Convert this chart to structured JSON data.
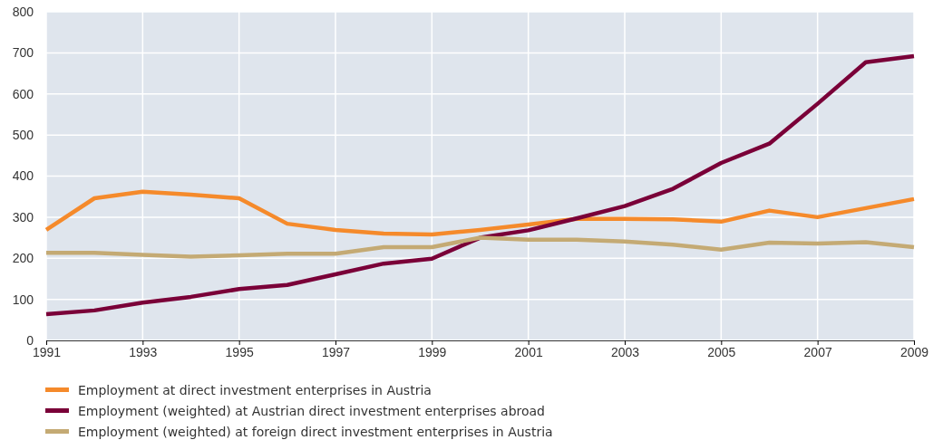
{
  "chart_data": {
    "type": "line",
    "x": [
      1991,
      1992,
      1993,
      1994,
      1995,
      1996,
      1997,
      1998,
      1999,
      2000,
      2001,
      2002,
      2003,
      2004,
      2005,
      2006,
      2007,
      2008,
      2009
    ],
    "xlim": [
      1991,
      2009
    ],
    "xticks": [
      1991,
      1993,
      1995,
      1997,
      1999,
      2001,
      2003,
      2005,
      2007,
      2009
    ],
    "ylim": [
      0,
      800
    ],
    "yticks": [
      0,
      100,
      200,
      300,
      400,
      500,
      600,
      700,
      800
    ],
    "grid": true,
    "legend": "bottom",
    "line_style": "solid",
    "marker": "none",
    "series": [
      {
        "name": "Employment at direct investment enterprises in Austria",
        "color": "#f58a2b",
        "values": [
          269,
          346,
          362,
          355,
          346,
          284,
          269,
          260,
          258,
          269,
          282,
          296,
          296,
          295,
          289,
          316,
          300,
          322,
          344
        ]
      },
      {
        "name": "Employment (weighted) at Austrian direct investment enterprises abroad",
        "color": "#7a0038",
        "values": [
          64,
          73,
          92,
          106,
          125,
          135,
          161,
          187,
          199,
          250,
          268,
          297,
          327,
          369,
          432,
          479,
          576,
          677,
          692
        ]
      },
      {
        "name": "Employment (weighted) at foreign direct investment enterprises in Austria",
        "color": "#c4aa74",
        "values": [
          213,
          213,
          208,
          204,
          207,
          211,
          211,
          227,
          227,
          250,
          245,
          245,
          241,
          233,
          221,
          238,
          236,
          239,
          227
        ]
      }
    ]
  }
}
